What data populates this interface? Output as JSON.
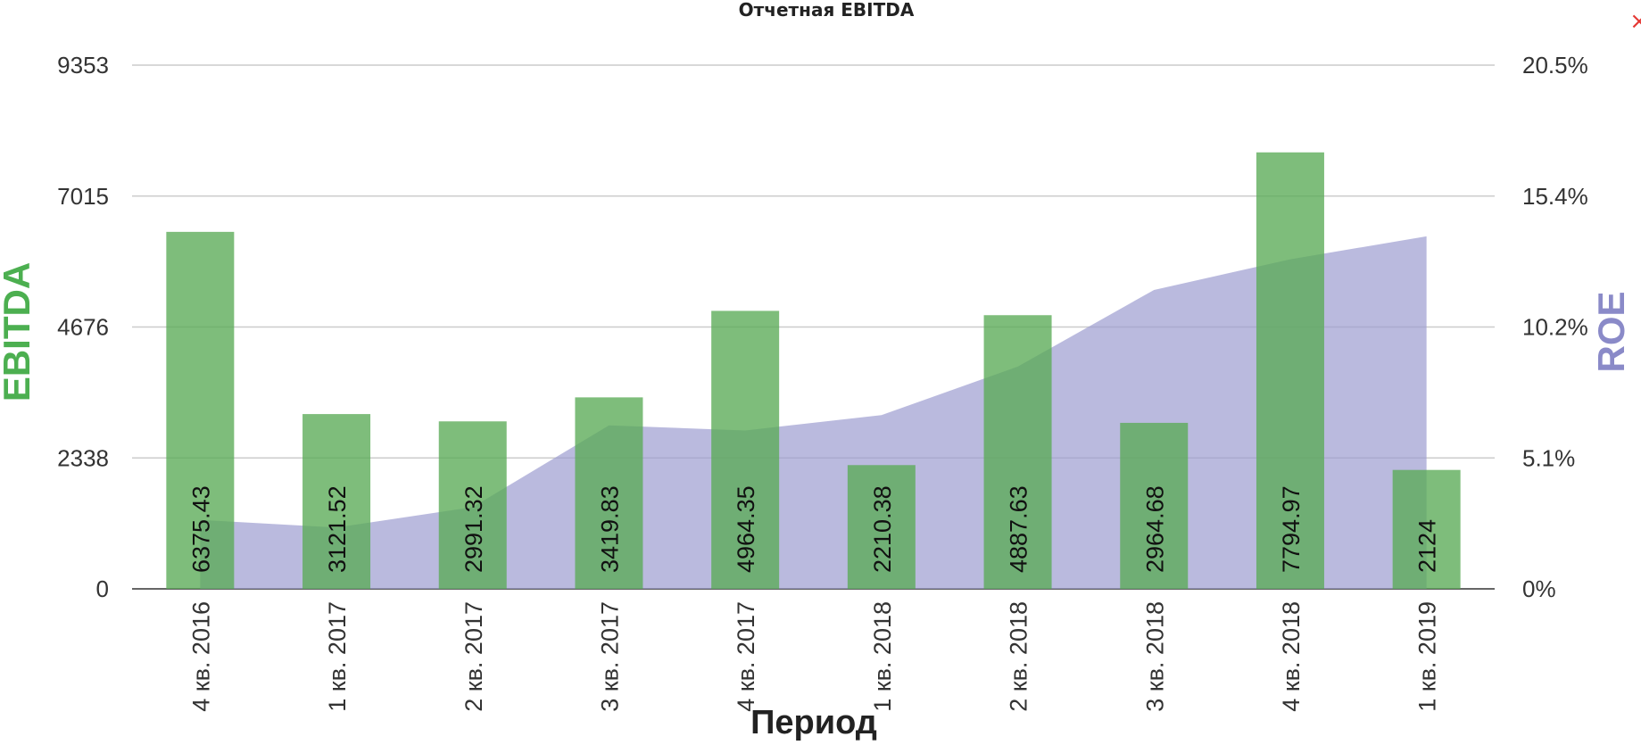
{
  "chart_data": {
    "type": "bar",
    "title": "Отчетная EBITDA",
    "xlabel": "Период",
    "ylabel": "EBITDA",
    "y2label": "ROE",
    "categories": [
      "4 кв. 2016",
      "1 кв. 2017",
      "2 кв. 2017",
      "3 кв. 2017",
      "4 кв. 2017",
      "1 кв. 2018",
      "2 кв. 2018",
      "3 кв. 2018",
      "4 кв. 2018",
      "1 кв. 2019"
    ],
    "series": [
      {
        "name": "EBITDA",
        "kind": "bar",
        "axis": "left",
        "values": [
          6375.43,
          3121.52,
          2991.32,
          3419.83,
          4964.35,
          2210.38,
          4887.63,
          2964.68,
          7794.97,
          2124
        ],
        "data_labels": [
          "6375.43",
          "3121.52",
          "2991.32",
          "3419.83",
          "4964.35",
          "2210.38",
          "4887.63",
          "2964.68",
          "7794.97",
          "2124"
        ],
        "color": "#5aaa56"
      },
      {
        "name": "ROE",
        "kind": "area",
        "axis": "right",
        "values": [
          2.7,
          2.4,
          3.2,
          6.4,
          6.2,
          6.8,
          8.7,
          11.7,
          12.9,
          13.8
        ],
        "color": "#9c9cd0"
      }
    ],
    "y_left": {
      "ylim": [
        0,
        9353
      ],
      "ticks": [
        "0",
        "2338",
        "4676",
        "7015",
        "9353"
      ]
    },
    "y_right": {
      "ylim": [
        0,
        20.5
      ],
      "ticks": [
        "0%",
        "5.1%",
        "10.2%",
        "15.4%",
        "20.5%"
      ]
    },
    "grid": true,
    "legend": "none",
    "colors": {
      "ylabel_left": "#4caf50",
      "ylabel_right": "#8a8ac8",
      "gridline": "#cccccc",
      "close_icon": "#e53935"
    }
  },
  "ui": {
    "close_icon_name": "close-icon",
    "close_glyph": "×"
  }
}
